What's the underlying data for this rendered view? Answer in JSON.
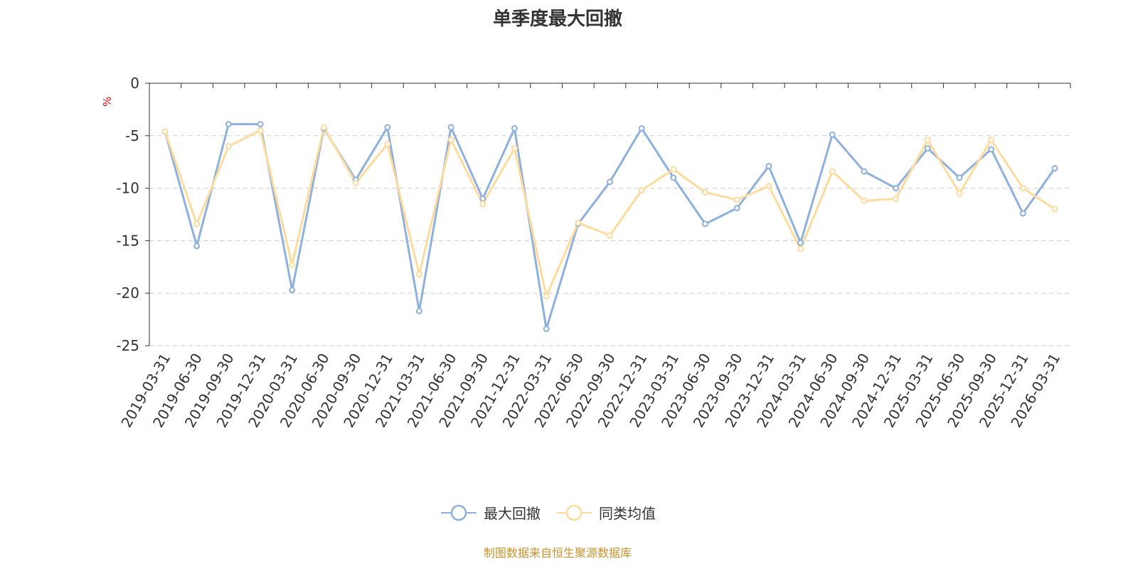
{
  "chart_data": {
    "type": "line",
    "title": "单季度最大回撤",
    "ylabel": "%",
    "xlabel": "",
    "ylim": [
      -25,
      0
    ],
    "yticks": [
      0,
      -5,
      -10,
      -15,
      -20,
      -25
    ],
    "grid": true,
    "legend_position": "bottom-center",
    "x": [
      "2019-03-31",
      "2019-06-30",
      "2019-09-30",
      "2019-12-31",
      "2020-03-31",
      "2020-06-30",
      "2020-09-30",
      "2020-12-31",
      "2021-03-31",
      "2021-06-30",
      "2021-09-30",
      "2021-12-31",
      "2022-03-31",
      "2022-06-30",
      "2022-09-30",
      "2022-12-31",
      "2023-03-31",
      "2023-06-30",
      "2023-09-30",
      "2023-12-31",
      "2024-03-31",
      "2024-06-30",
      "2024-09-30",
      "2024-12-31",
      "2025-03-31",
      "2025-06-30",
      "2025-09-30",
      "2025-12-31",
      "2026-03-31"
    ],
    "series": [
      {
        "name": "最大回撤",
        "color": "#8eb0dd",
        "values": [
          -4.6,
          -15.5,
          -3.9,
          -3.9,
          -19.7,
          -4.3,
          -9.2,
          -4.2,
          -21.7,
          -4.2,
          -11.0,
          -4.3,
          -23.4,
          -13.4,
          -9.4,
          -4.3,
          -9.0,
          -13.4,
          -11.9,
          -7.9,
          -15.2,
          -4.9,
          -8.4,
          -10.0,
          -6.2,
          -9.0,
          -6.3,
          -12.4,
          -8.1
        ]
      },
      {
        "name": "同类均值",
        "color": "#fddb9c",
        "values": [
          -4.6,
          -13.4,
          -6.0,
          -4.5,
          -17.3,
          -4.2,
          -9.5,
          -5.8,
          -18.2,
          -5.4,
          -11.5,
          -6.2,
          -20.3,
          -13.3,
          -14.5,
          -10.2,
          -8.2,
          -10.4,
          -11.1,
          -9.8,
          -15.8,
          -8.4,
          -11.2,
          -11.0,
          -5.4,
          -10.5,
          -5.4,
          -10.0,
          -12.0
        ]
      }
    ]
  },
  "source": "制图数据来自恒生聚源数据库"
}
